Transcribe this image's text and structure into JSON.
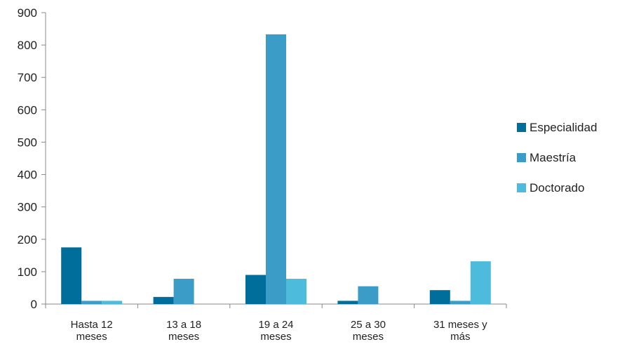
{
  "chart_data": {
    "type": "bar",
    "title": "",
    "xlabel": "",
    "ylabel": "",
    "ylim": [
      0,
      900
    ],
    "yticks": [
      0,
      100,
      200,
      300,
      400,
      500,
      600,
      700,
      800,
      900
    ],
    "grid": false,
    "legend_position": "right",
    "categories": [
      [
        "Hasta 12",
        "meses"
      ],
      [
        "13 a 18",
        "meses"
      ],
      [
        "19 a 24",
        "meses"
      ],
      [
        "25 a 30",
        "meses"
      ],
      [
        "31 meses y",
        "más"
      ]
    ],
    "series": [
      {
        "name": "Especialidad",
        "color": "#006e9a",
        "values": [
          175,
          22,
          90,
          10,
          43
        ]
      },
      {
        "name": "Maestría",
        "color": "#3c9cc8",
        "values": [
          10,
          78,
          833,
          55,
          10
        ]
      },
      {
        "name": "Doctorado",
        "color": "#4dbbdb",
        "values": [
          10,
          0,
          78,
          0,
          132
        ]
      }
    ]
  }
}
